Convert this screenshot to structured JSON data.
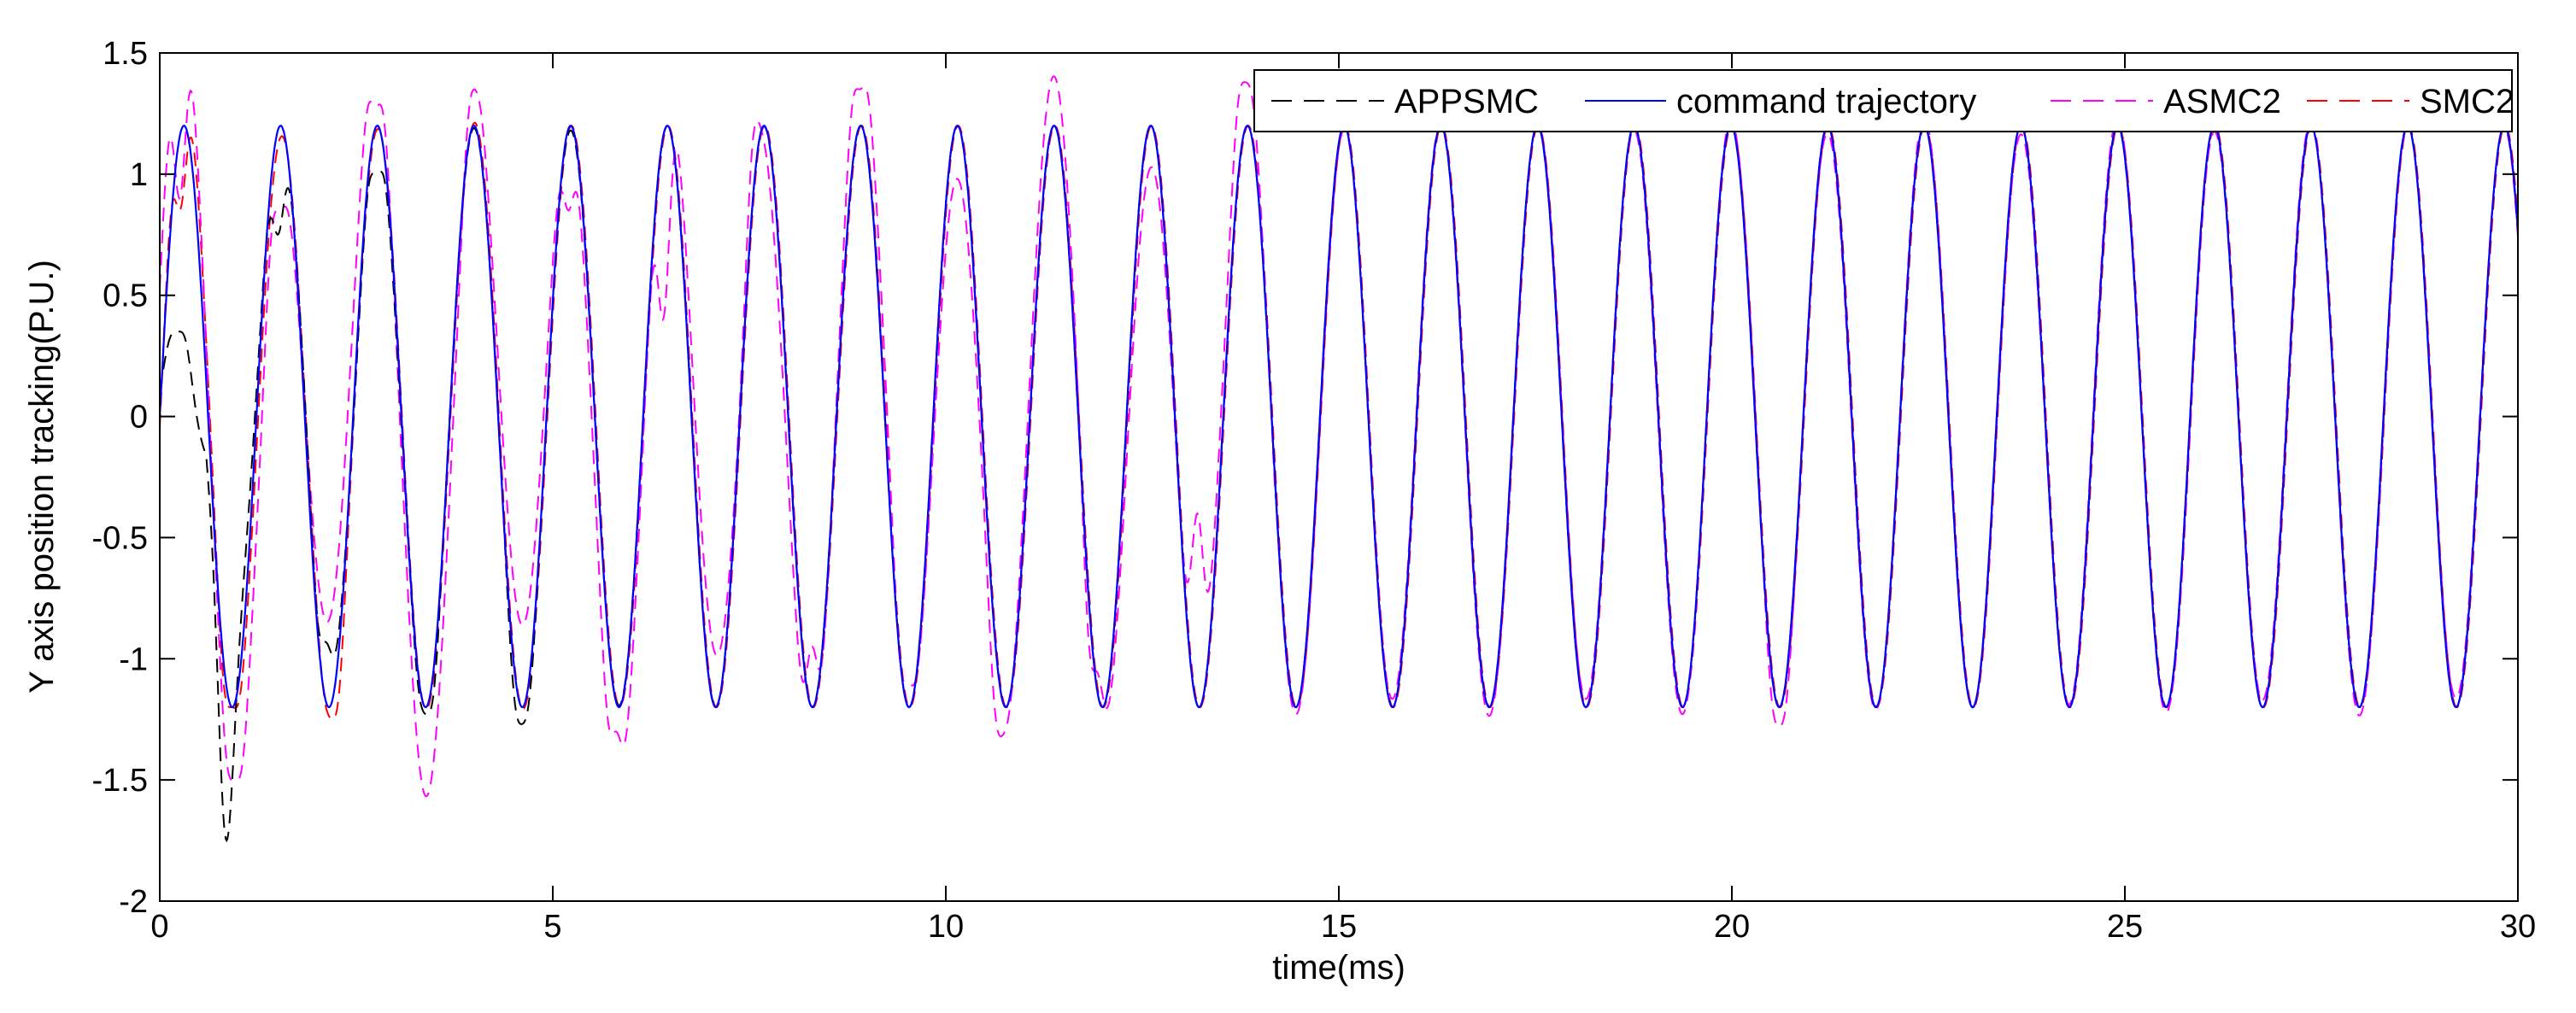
{
  "chart_data": {
    "type": "line",
    "title": "",
    "xlabel": "time(ms)",
    "ylabel": "Y axis position tracking(P.U.)",
    "xlim": [
      0,
      30
    ],
    "ylim": [
      -2,
      1.5
    ],
    "xticks": [
      0,
      5,
      10,
      15,
      20,
      25,
      30
    ],
    "yticks": [
      -2,
      -1.5,
      -1,
      -0.5,
      0,
      0.5,
      1,
      1.5
    ],
    "ytick_labels": [
      "-2",
      "-1.5",
      "-1",
      "-0.5",
      "0",
      "0.5",
      "1",
      "1.5"
    ],
    "grid": false,
    "legend_position": "top-right",
    "amplitude": 1.2,
    "period_ms": 1.23,
    "series": [
      {
        "name": "APPSMC",
        "color": "#000000",
        "style": "dashed",
        "description": "converges to command by ~4 ms",
        "transient_peaks": [
          {
            "t": 0.25,
            "y": 0.35
          },
          {
            "t": 0.85,
            "y": -1.75
          },
          {
            "t": 1.5,
            "y": 0.75
          },
          {
            "t": 2.1,
            "y": -0.93
          },
          {
            "t": 2.75,
            "y": 1.0
          },
          {
            "t": 3.4,
            "y": -1.23
          },
          {
            "t": 4.6,
            "y": -1.27
          }
        ]
      },
      {
        "name": "command trajectory",
        "color": "#0000ff",
        "style": "solid",
        "description": "sinusoid amplitude 1.2",
        "transient_peaks": []
      },
      {
        "name": "ASMC2",
        "color": "#ff00ff",
        "style": "dashed",
        "description": "oscillating tracking error decaying until ~14 ms",
        "transient_peaks": [
          {
            "t": 0.25,
            "y": 0.9
          },
          {
            "t": 0.95,
            "y": -1.5
          },
          {
            "t": 1.5,
            "y": 0.85
          },
          {
            "t": 2.75,
            "y": 1.28
          },
          {
            "t": 4.0,
            "y": 1.35
          },
          {
            "t": 5.2,
            "y": 0.85
          },
          {
            "t": 5.8,
            "y": -1.3
          },
          {
            "t": 6.4,
            "y": 0.4
          },
          {
            "t": 7.6,
            "y": 1.22
          },
          {
            "t": 8.3,
            "y": -0.95
          },
          {
            "t": 8.9,
            "y": 1.35
          },
          {
            "t": 9.5,
            "y": -1.1
          },
          {
            "t": 10.7,
            "y": -1.32
          },
          {
            "t": 11.9,
            "y": -1.05
          },
          {
            "t": 13.2,
            "y": -0.4
          },
          {
            "t": 13.8,
            "y": 1.38
          },
          {
            "t": 20.6,
            "y": -1.28
          }
        ]
      },
      {
        "name": "SMC2",
        "color": "#ff0000",
        "style": "dashed",
        "description": "close to command, small deviations early",
        "transient_peaks": [
          {
            "t": 0.25,
            "y": 0.85
          },
          {
            "t": 0.9,
            "y": -1.2
          },
          {
            "t": 2.2,
            "y": -1.25
          }
        ]
      }
    ]
  }
}
